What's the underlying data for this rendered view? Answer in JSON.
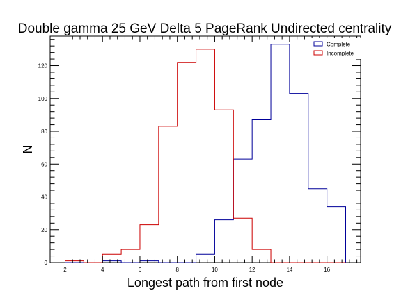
{
  "chart_data": {
    "type": "histogram",
    "title": "Double gamma 25 GeV Delta 5 PageRank Undirected centrality",
    "xlabel": "Longest path from first node",
    "ylabel": "N",
    "xlim": [
      1.2,
      17.8
    ],
    "ylim": [
      0,
      138
    ],
    "x_ticks": [
      2,
      4,
      6,
      8,
      10,
      12,
      14,
      16
    ],
    "y_ticks": [
      0,
      20,
      40,
      60,
      80,
      100,
      120
    ],
    "bin_edges": [
      2,
      3,
      4,
      5,
      6,
      7,
      8,
      9,
      10,
      11,
      12,
      13,
      14,
      15,
      16,
      17
    ],
    "legend_position": "top-right",
    "grid": false,
    "series": [
      {
        "name": "Complete",
        "color": "#000099",
        "values": [
          0,
          0,
          1,
          0,
          1,
          0,
          0,
          5,
          26,
          63,
          87,
          133,
          103,
          45,
          34
        ]
      },
      {
        "name": "Incomplete",
        "color": "#cc0000",
        "values": [
          1,
          0,
          5,
          8,
          23,
          83,
          122,
          130,
          93,
          27,
          8,
          0,
          0,
          0,
          0
        ]
      }
    ]
  }
}
